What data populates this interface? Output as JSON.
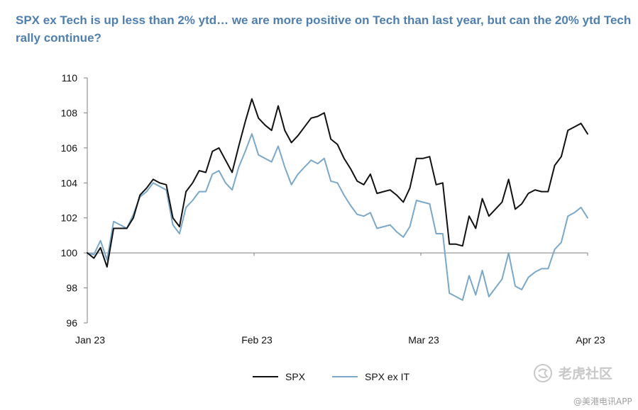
{
  "chart_data": {
    "type": "line",
    "title": "SPX ex Tech is up less than 2% ytd… we are more positive on Tech than last year, but can the 20% ytd Tech rally continue?",
    "xlabel": "",
    "ylabel": "",
    "ylim": [
      96,
      110
    ],
    "yticks": [
      96,
      98,
      100,
      102,
      104,
      106,
      108,
      110
    ],
    "xticks": [
      "Jan 23",
      "Feb 23",
      "Mar 23",
      "Apr 23"
    ],
    "grid": false,
    "baseline": 100,
    "legend_position": "bottom-center",
    "series": [
      {
        "name": "SPX",
        "color": "#111111",
        "values": [
          100.0,
          99.7,
          100.3,
          99.2,
          101.4,
          101.4,
          101.4,
          102.0,
          103.3,
          103.7,
          104.2,
          104.0,
          103.9,
          102.0,
          101.5,
          103.5,
          104.0,
          104.7,
          104.6,
          105.8,
          106.0,
          105.3,
          104.6,
          106.1,
          107.5,
          108.8,
          107.7,
          107.3,
          107.0,
          108.4,
          107.0,
          106.3,
          106.7,
          107.2,
          107.7,
          107.8,
          108.0,
          106.5,
          106.2,
          105.4,
          104.8,
          104.1,
          103.9,
          104.5,
          103.4,
          103.5,
          103.6,
          103.3,
          102.9,
          103.7,
          105.4,
          105.4,
          105.5,
          103.9,
          104.0,
          100.5,
          100.5,
          100.4,
          102.1,
          101.4,
          103.1,
          102.1,
          102.5,
          102.9,
          104.2,
          102.5,
          102.8,
          103.4,
          103.6,
          103.5,
          103.5,
          105.0,
          105.5,
          107.0,
          107.2,
          107.4,
          106.8
        ]
      },
      {
        "name": "SPX ex IT",
        "color": "#7ba7c9",
        "values": [
          100.0,
          99.9,
          100.7,
          99.6,
          101.8,
          101.6,
          101.4,
          102.2,
          103.2,
          103.5,
          104.0,
          103.8,
          103.6,
          101.6,
          101.1,
          102.6,
          103.0,
          103.5,
          103.5,
          104.5,
          104.7,
          104.0,
          103.6,
          104.9,
          105.8,
          106.8,
          105.6,
          105.4,
          105.2,
          106.1,
          104.9,
          103.9,
          104.5,
          104.9,
          105.3,
          105.1,
          105.4,
          104.1,
          104.0,
          103.3,
          102.7,
          102.2,
          102.1,
          102.3,
          101.4,
          101.5,
          101.6,
          101.2,
          100.9,
          101.5,
          103.0,
          102.9,
          102.8,
          101.1,
          101.1,
          97.7,
          97.5,
          97.3,
          98.7,
          97.6,
          99.0,
          97.5,
          98.0,
          98.5,
          100.0,
          98.1,
          97.9,
          98.6,
          98.9,
          99.1,
          99.1,
          100.2,
          100.6,
          102.1,
          102.3,
          102.6,
          102.0
        ]
      }
    ]
  },
  "watermark": {
    "text": "老虎社区",
    "sub": "@美港电讯APP",
    "color": "#c8c8c8"
  }
}
